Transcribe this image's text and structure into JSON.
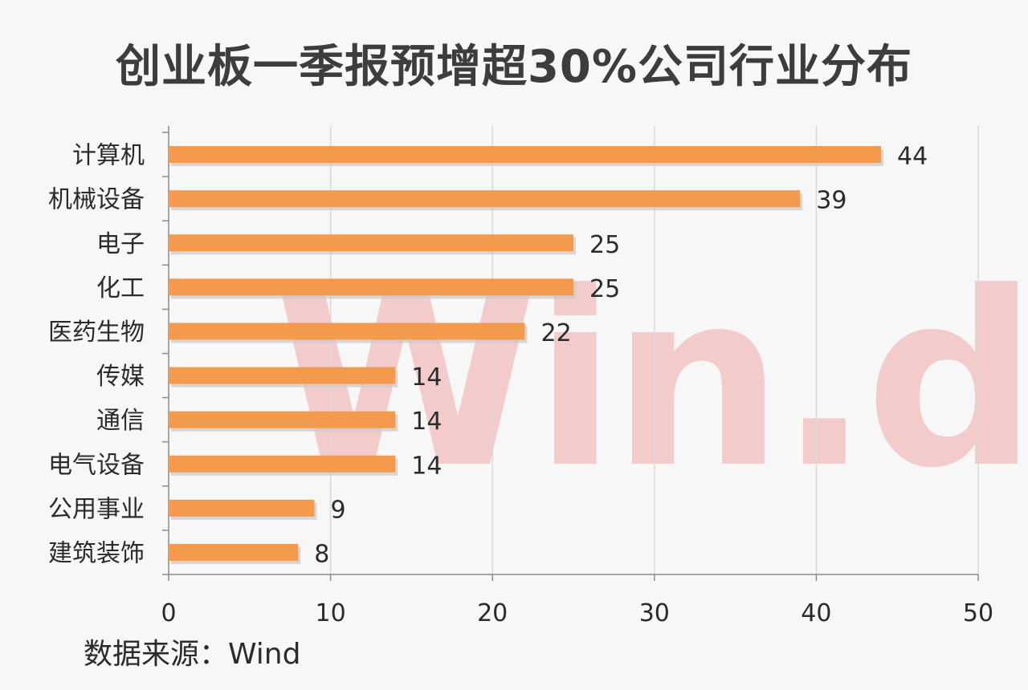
{
  "watermark": "Win.d",
  "source": "数据来源：Wind",
  "colors": {
    "bar": "#f39a4c",
    "bar_shadow": "#c7c7c7",
    "grid": "#d9d9d9",
    "axis": "#8c8c8c",
    "watermark": "#f0a8a8"
  },
  "chart_data": {
    "type": "bar",
    "orientation": "horizontal",
    "title": "创业板一季报预增超30%公司行业分布",
    "categories": [
      "计算机",
      "机械设备",
      "电子",
      "化工",
      "医药生物",
      "传媒",
      "通信",
      "电气设备",
      "公用事业",
      "建筑装饰"
    ],
    "values": [
      44,
      39,
      25,
      25,
      22,
      14,
      14,
      14,
      9,
      8
    ],
    "xlim": [
      0,
      50
    ],
    "xticks": [
      0,
      10,
      20,
      30,
      40,
      50
    ],
    "grid": "vertical",
    "legend": "none"
  }
}
